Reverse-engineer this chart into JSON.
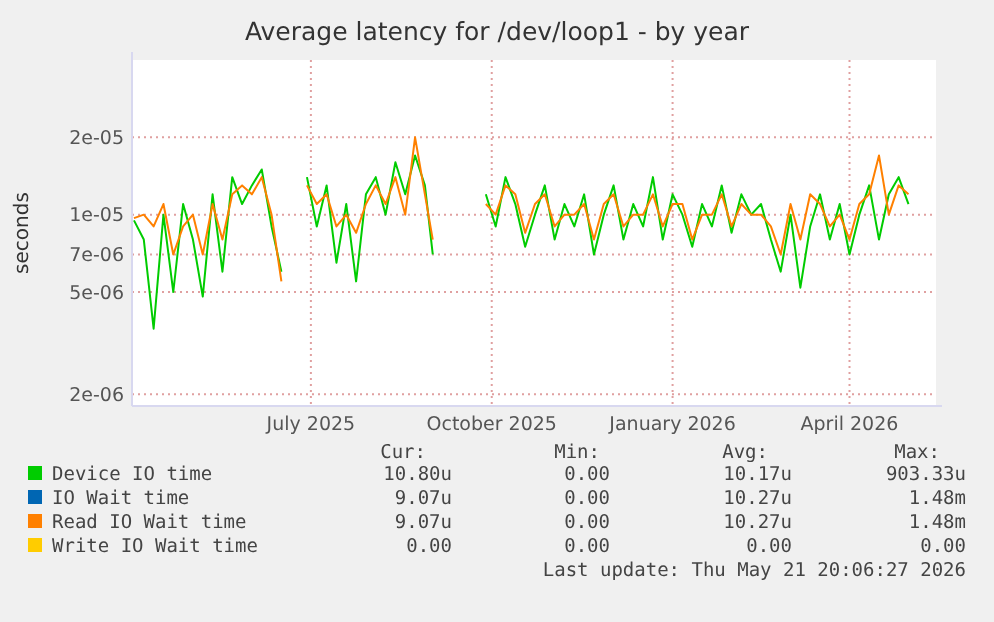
{
  "chart_data": {
    "type": "line",
    "title": "Average latency for /dev/loop1 - by year",
    "ylabel": "seconds",
    "log": "y",
    "grid": true,
    "legend": "bottom",
    "xlim": [
      "2025-04-01",
      "2026-05-15"
    ],
    "xticks": [
      {
        "value": "2025-07-01",
        "label": "July 2025"
      },
      {
        "value": "2025-10-01",
        "label": "October 2025"
      },
      {
        "value": "2026-01-01",
        "label": "January 2026"
      },
      {
        "value": "2026-04-01",
        "label": "April 2026"
      }
    ],
    "ylim": [
      1.8e-06,
      4e-05
    ],
    "yticks": [
      {
        "value": 2e-06,
        "label": "2e-06"
      },
      {
        "value": 5e-06,
        "label": "5e-06"
      },
      {
        "value": 7e-06,
        "label": "7e-06"
      },
      {
        "value": 1e-05,
        "label": "1e-05"
      },
      {
        "value": 2e-05,
        "label": "2e-05"
      }
    ],
    "x": [
      "2025-04-02",
      "2025-04-07",
      "2025-04-12",
      "2025-04-17",
      "2025-04-22",
      "2025-04-27",
      "2025-05-02",
      "2025-05-07",
      "2025-05-12",
      "2025-05-17",
      "2025-05-22",
      "2025-05-27",
      "2025-06-01",
      "2025-06-06",
      "2025-06-11",
      "2025-06-16",
      "2025-06-22",
      "2025-06-29",
      "2025-07-04",
      "2025-07-09",
      "2025-07-14",
      "2025-07-19",
      "2025-07-24",
      "2025-07-29",
      "2025-08-03",
      "2025-08-08",
      "2025-08-13",
      "2025-08-18",
      "2025-08-23",
      "2025-08-28",
      "2025-09-01",
      "2025-09-15",
      "2025-09-28",
      "2025-10-03",
      "2025-10-08",
      "2025-10-13",
      "2025-10-18",
      "2025-10-23",
      "2025-10-28",
      "2025-11-02",
      "2025-11-07",
      "2025-11-12",
      "2025-11-17",
      "2025-11-22",
      "2025-11-27",
      "2025-12-02",
      "2025-12-07",
      "2025-12-12",
      "2025-12-17",
      "2025-12-22",
      "2025-12-27",
      "2026-01-01",
      "2026-01-06",
      "2026-01-11",
      "2026-01-16",
      "2026-01-21",
      "2026-01-26",
      "2026-01-31",
      "2026-02-05",
      "2026-02-10",
      "2026-02-15",
      "2026-02-20",
      "2026-02-25",
      "2026-03-02",
      "2026-03-07",
      "2026-03-12",
      "2026-03-17",
      "2026-03-22",
      "2026-03-27",
      "2026-04-01",
      "2026-04-06",
      "2026-04-11",
      "2026-04-16",
      "2026-04-21",
      "2026-04-26",
      "2026-05-01"
    ],
    "series": [
      {
        "name": "Device IO time",
        "color": "#00cc00",
        "values": [
          9.5e-06,
          8e-06,
          3.6e-06,
          1e-05,
          5e-06,
          1.1e-05,
          8e-06,
          4.8e-06,
          1.2e-05,
          6e-06,
          1.4e-05,
          1.1e-05,
          1.3e-05,
          1.5e-05,
          9e-06,
          6e-06,
          null,
          1.4e-05,
          9e-06,
          1.3e-05,
          6.5e-06,
          1.1e-05,
          5.5e-06,
          1.2e-05,
          1.4e-05,
          1e-05,
          1.6e-05,
          1.2e-05,
          1.7e-05,
          1.3e-05,
          7e-06,
          null,
          1.2e-05,
          9e-06,
          1.4e-05,
          1.1e-05,
          7.5e-06,
          1e-05,
          1.3e-05,
          8e-06,
          1.1e-05,
          9e-06,
          1.2e-05,
          7e-06,
          1e-05,
          1.3e-05,
          8e-06,
          1.1e-05,
          9e-06,
          1.4e-05,
          8e-06,
          1.2e-05,
          1e-05,
          7.5e-06,
          1.1e-05,
          9e-06,
          1.3e-05,
          8.5e-06,
          1.2e-05,
          1e-05,
          1.1e-05,
          8e-06,
          6e-06,
          1e-05,
          5.2e-06,
          9e-06,
          1.2e-05,
          8e-06,
          1.1e-05,
          7e-06,
          1e-05,
          1.3e-05,
          8e-06,
          1.2e-05,
          1.4e-05,
          1.1e-05
        ]
      },
      {
        "name": "IO Wait time",
        "color": "#0066b3",
        "values": [
          null,
          null,
          null,
          null,
          null,
          null,
          null,
          null,
          null,
          null,
          null,
          null,
          null,
          null,
          null,
          null,
          null,
          null,
          null,
          null,
          null,
          null,
          null,
          null,
          null,
          null,
          null,
          null,
          null,
          null,
          null,
          null,
          null,
          null,
          null,
          null,
          null,
          null,
          null,
          null,
          null,
          null,
          null,
          null,
          null,
          null,
          null,
          null,
          null,
          null,
          null,
          null,
          null,
          null,
          null,
          null,
          null,
          null,
          null,
          null,
          null,
          null,
          null,
          null,
          null,
          null,
          null,
          null,
          null,
          null,
          null,
          null,
          null,
          null,
          null,
          null
        ]
      },
      {
        "name": "Read IO Wait time",
        "color": "#ff8000",
        "values": [
          9.7e-06,
          1e-05,
          9e-06,
          1.1e-05,
          7e-06,
          9e-06,
          1e-05,
          7e-06,
          1.1e-05,
          8e-06,
          1.2e-05,
          1.3e-05,
          1.2e-05,
          1.4e-05,
          1e-05,
          5.5e-06,
          null,
          1.3e-05,
          1.1e-05,
          1.2e-05,
          9e-06,
          1e-05,
          8.5e-06,
          1.1e-05,
          1.3e-05,
          1.1e-05,
          1.4e-05,
          1e-05,
          2e-05,
          1.2e-05,
          8e-06,
          null,
          1.1e-05,
          1e-05,
          1.3e-05,
          1.2e-05,
          8.5e-06,
          1.1e-05,
          1.2e-05,
          9e-06,
          1e-05,
          1e-05,
          1.1e-05,
          8e-06,
          1.1e-05,
          1.2e-05,
          9e-06,
          1e-05,
          1e-05,
          1.2e-05,
          9e-06,
          1.1e-05,
          1.1e-05,
          8e-06,
          1e-05,
          1e-05,
          1.2e-05,
          9e-06,
          1.1e-05,
          1e-05,
          1e-05,
          9e-06,
          7e-06,
          1.1e-05,
          8e-06,
          1.2e-05,
          1.1e-05,
          9e-06,
          1e-05,
          8e-06,
          1.1e-05,
          1.2e-05,
          1.7e-05,
          1e-05,
          1.3e-05,
          1.2e-05
        ]
      },
      {
        "name": "Write IO Wait time",
        "color": "#ffcc00",
        "values": [
          null,
          null,
          null,
          null,
          null,
          null,
          null,
          null,
          null,
          null,
          null,
          null,
          null,
          null,
          null,
          null,
          null,
          null,
          null,
          null,
          null,
          null,
          null,
          null,
          null,
          null,
          null,
          null,
          null,
          null,
          null,
          null,
          null,
          null,
          null,
          null,
          null,
          null,
          null,
          null,
          null,
          null,
          null,
          null,
          null,
          null,
          null,
          null,
          null,
          null,
          null,
          null,
          null,
          null,
          null,
          null,
          null,
          null,
          null,
          null,
          null,
          null,
          null,
          null,
          null,
          null,
          null,
          null,
          null,
          null,
          null,
          null,
          null,
          null,
          null,
          null
        ]
      }
    ],
    "annotations": [
      "Cur:",
      "Min:",
      "Avg:",
      "Max:",
      "10.80u",
      "0.00",
      "10.17u",
      "903.33u",
      "9.07u",
      "0.00",
      "10.27u",
      "1.48m",
      "9.07u",
      "0.00",
      "10.27u",
      "1.48m",
      "0.00",
      "0.00",
      "0.00",
      "0.00",
      "Last update: Thu May 21 20:06:27 2026"
    ]
  }
}
